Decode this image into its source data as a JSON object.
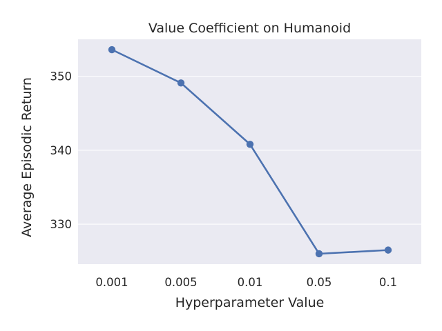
{
  "chart_data": {
    "type": "line",
    "title": "Value Coefficient on Humanoid",
    "xlabel": "Hyperparameter Value",
    "ylabel": "Average Episodic Return",
    "categories": [
      "0.001",
      "0.005",
      "0.01",
      "0.05",
      "0.1"
    ],
    "series": [
      {
        "values": [
          353.6,
          349.1,
          340.8,
          326.0,
          326.5
        ]
      }
    ],
    "ylim": [
      324.6,
      355.0
    ],
    "yticks": [
      330,
      340,
      350
    ],
    "grid": true,
    "legend": "none",
    "colors": {
      "background": "#eaeaf2",
      "grid": "#ffffff",
      "line": "#4c72b0",
      "text": "#262626"
    }
  }
}
